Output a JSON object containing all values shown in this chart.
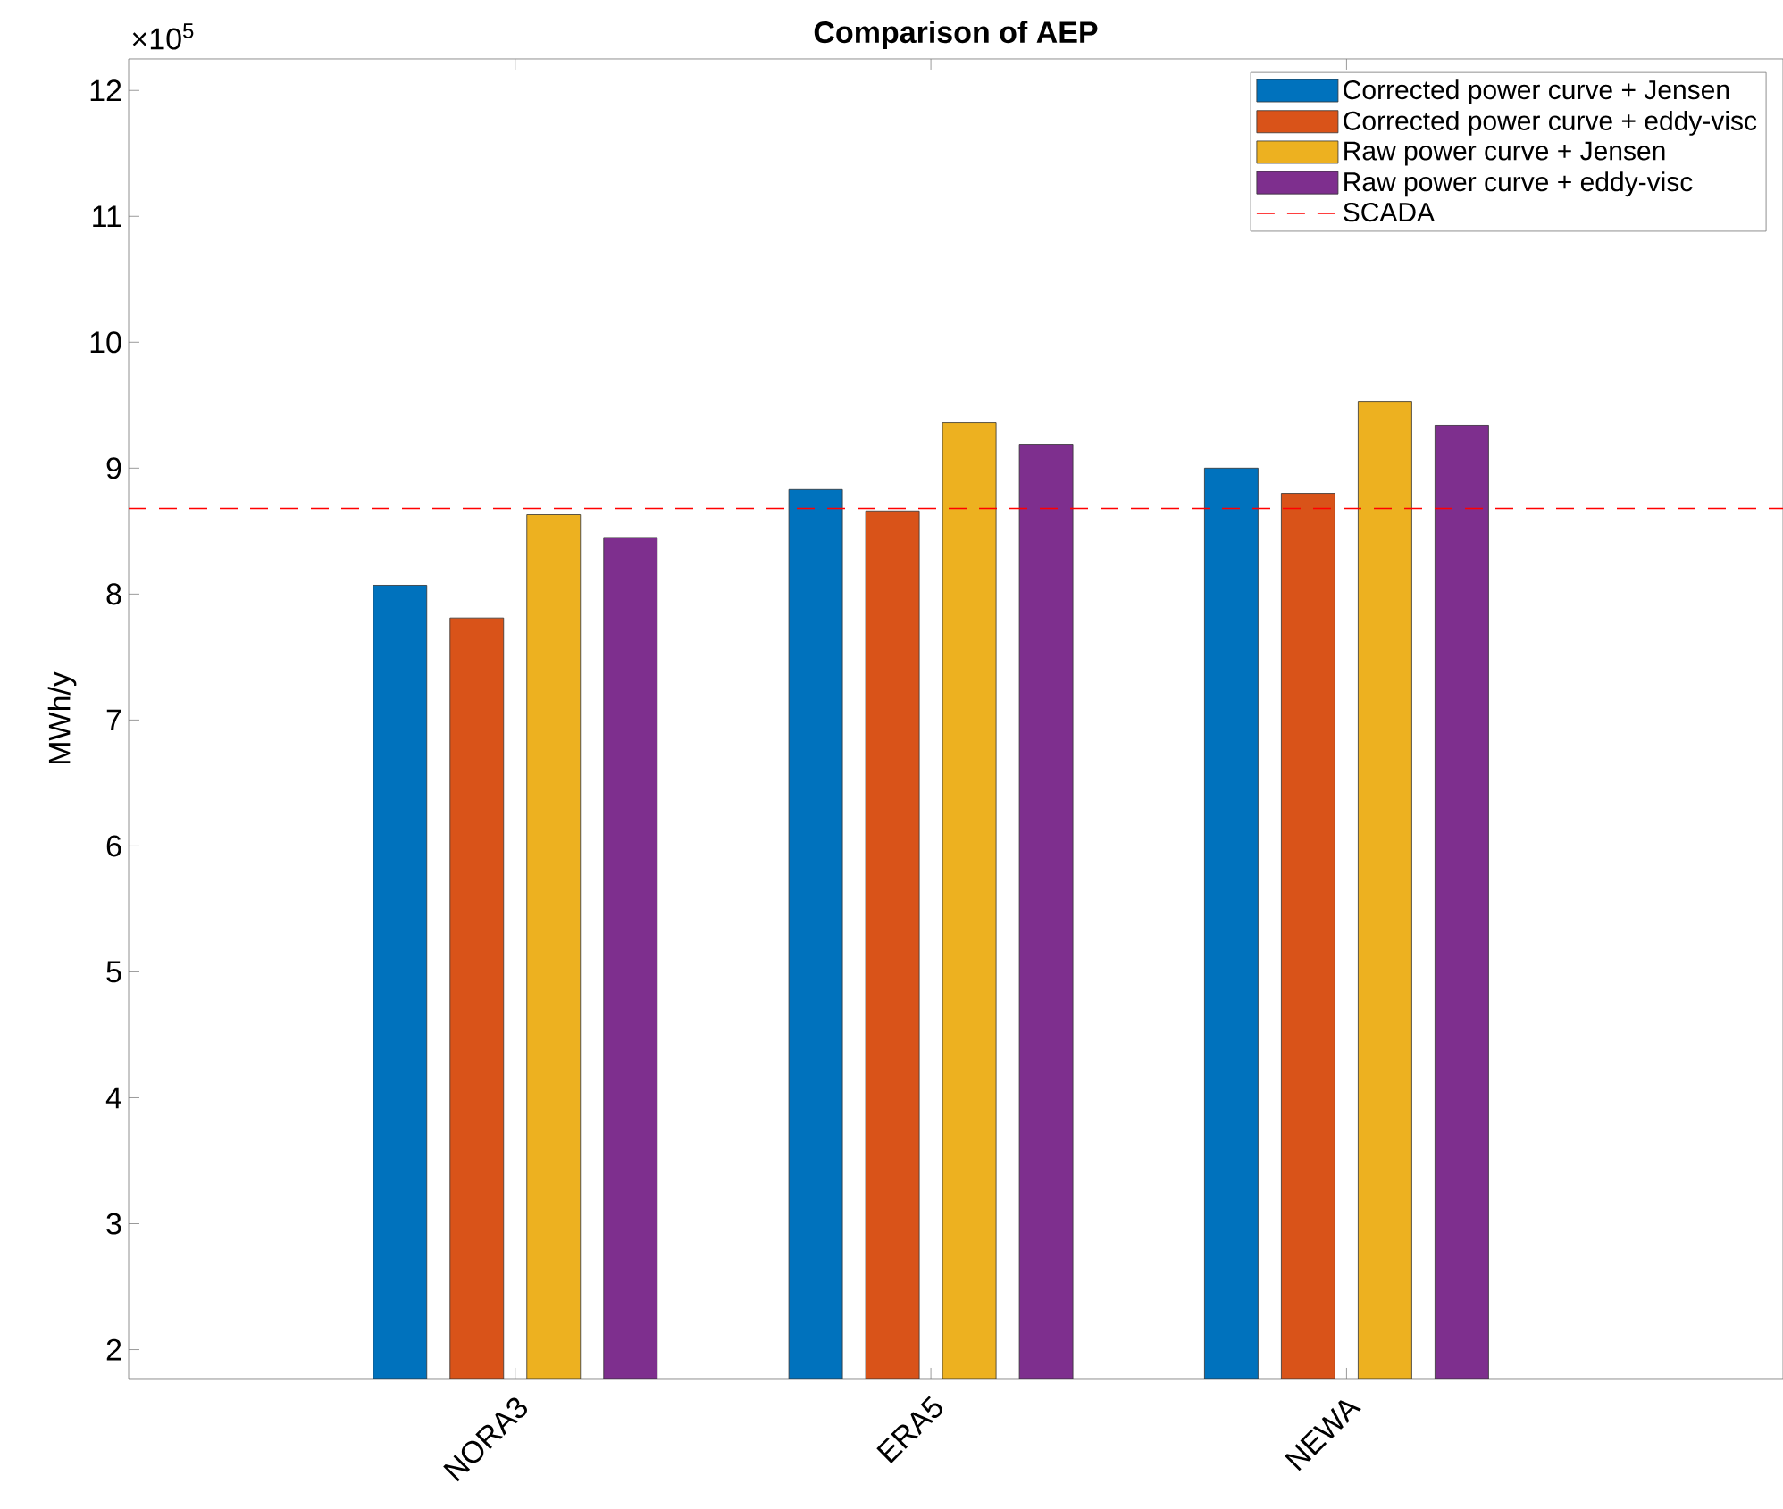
{
  "chart_data": {
    "type": "bar",
    "title": "Comparison of AEP",
    "ylabel": "MWh/y",
    "annotations": [
      "×10$^{5}$"
    ],
    "categories": [
      "NORA3",
      "ERA5",
      "NEWA"
    ],
    "series": [
      {
        "name": "Corrected power curve + Jensen",
        "color": "#0072bd",
        "values": [
          8.07,
          8.83,
          9.0
        ]
      },
      {
        "name": "Corrected power curve + eddy-visc",
        "color": "#d95319",
        "values": [
          7.81,
          8.66,
          8.8
        ]
      },
      {
        "name": "Raw power curve + Jensen",
        "color": "#edb120",
        "values": [
          8.63,
          9.36,
          9.53
        ]
      },
      {
        "name": "Raw power curve + eddy-visc",
        "color": "#7e2f8e",
        "values": [
          8.45,
          9.19,
          9.34
        ]
      }
    ],
    "ref_lines": [
      {
        "axis": "y",
        "value": 8.68,
        "label": "SCADA",
        "color": "#ff0000",
        "line_style": "dashed"
      }
    ],
    "ylim": [
      1.77,
      12.25
    ],
    "yticks": [
      2,
      3,
      4,
      5,
      6,
      7,
      8,
      9,
      10,
      11,
      12
    ],
    "legend": "top right",
    "grid": false
  }
}
